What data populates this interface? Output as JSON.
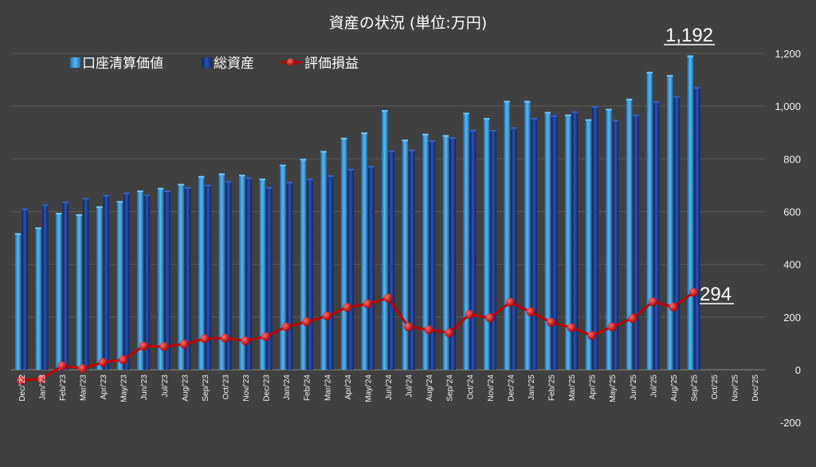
{
  "chart_data": {
    "type": "bar",
    "title": "資産の状況 (単位:万円)",
    "categories": [
      "Dec/'22",
      "Jan/'23",
      "Feb/'23",
      "Mar/'23",
      "Apr/'23",
      "May/'23",
      "Jun/'23",
      "Jul/'23",
      "Aug/'23",
      "Sep/'23",
      "Oct/'23",
      "Nov/'23",
      "Dec/'23",
      "Jan/'24",
      "Feb/'24",
      "Mar/'24",
      "Apr/'24",
      "May/'24",
      "Jun/'24",
      "Jul/'24",
      "Aug/'24",
      "Sep/'24",
      "Oct/'24",
      "Nov/'24",
      "Dec/'24",
      "Jan/'25",
      "Feb/'25",
      "Mar/'25",
      "Apr/'25",
      "May/'25",
      "Jun/'25",
      "Jul/'25",
      "Aug/'25",
      "Sep/'25",
      "Oct/'25",
      "Nov/'25",
      "Dec/'25"
    ],
    "series": [
      {
        "name": "口座清算価値",
        "kind": "bar",
        "color": "#3b9ddd",
        "values": [
          518,
          540,
          595,
          590,
          620,
          640,
          680,
          690,
          705,
          735,
          745,
          740,
          725,
          778,
          800,
          830,
          880,
          900,
          985,
          873,
          895,
          890,
          975,
          955,
          1020,
          1020,
          978,
          968,
          950,
          990,
          1028,
          1130,
          1118,
          1192,
          null,
          null,
          null
        ]
      },
      {
        "name": "総資産",
        "kind": "bar",
        "color": "#1d3f92",
        "values": [
          612,
          627,
          638,
          652,
          663,
          672,
          665,
          680,
          693,
          702,
          716,
          730,
          693,
          713,
          725,
          738,
          762,
          773,
          832,
          835,
          870,
          882,
          910,
          910,
          920,
          955,
          965,
          980,
          1000,
          948,
          968,
          1018,
          1038,
          1072,
          null,
          null,
          null
        ]
      },
      {
        "name": "評価損益",
        "kind": "line",
        "color": "#c00000",
        "values": [
          -40,
          -35,
          15,
          5,
          28,
          38,
          90,
          88,
          97,
          118,
          120,
          110,
          126,
          163,
          182,
          204,
          237,
          250,
          272,
          163,
          152,
          140,
          210,
          197,
          256,
          220,
          180,
          160,
          130,
          163,
          195,
          258,
          238,
          294,
          null,
          null,
          null
        ]
      }
    ],
    "ylim": [
      -200,
      1200
    ],
    "yticks": [
      "-200",
      "0",
      "200",
      "400",
      "600",
      "800",
      "1,000",
      "1,200"
    ],
    "grid": true,
    "legend": "top-left",
    "annotations": [
      "1,192",
      "294"
    ]
  }
}
